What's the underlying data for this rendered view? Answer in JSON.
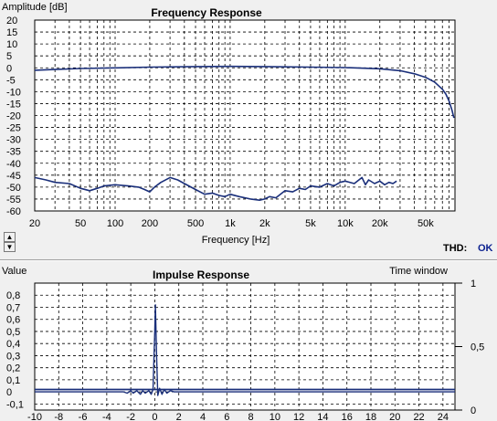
{
  "frequency_panel": {
    "thd_label": "THD:",
    "thd_value": "OK"
  },
  "spin_up_icon": "triangle-up-icon",
  "spin_down_icon": "triangle-down-icon",
  "colors": {
    "plot_bg": "#ffffff",
    "trace": "#1a2f7a",
    "thd_value": "#0a1f8f",
    "window": "#f0f0f0"
  },
  "chart_data": [
    {
      "type": "line",
      "title": "Frequency Response",
      "xlabel": "Frequency [Hz]",
      "ylabel": "Amplitude [dB]",
      "xscale": "log",
      "xlim": [
        20,
        90000
      ],
      "ylim": [
        -60,
        20
      ],
      "grid": true,
      "x_ticks": [
        20,
        50,
        100,
        200,
        500,
        1000,
        2000,
        5000,
        10000,
        20000,
        50000
      ],
      "x_tick_labels": [
        "20",
        "50",
        "100",
        "200",
        "500",
        "1k",
        "2k",
        "5k",
        "10k",
        "20k",
        "50k"
      ],
      "y_ticks": [
        20,
        15,
        10,
        5,
        0,
        -5,
        -10,
        -15,
        -20,
        -25,
        -30,
        -35,
        -40,
        -45,
        -50,
        -55,
        -60
      ],
      "y_tick_labels": [
        "20",
        "15",
        "10",
        "5",
        "0",
        "-5",
        "-10",
        "-15",
        "-20",
        "-25",
        "-30",
        "-35",
        "-40",
        "-45",
        "-50",
        "-55",
        "-60"
      ],
      "series": [
        {
          "x": [
            20,
            30,
            50,
            100,
            200,
            500,
            1000,
            2000,
            5000,
            10000,
            20000,
            30000,
            40000,
            50000,
            60000,
            70000,
            75000,
            80000,
            85000,
            88000
          ],
          "y": [
            -1,
            -0.7,
            -0.3,
            0,
            0.3,
            0.5,
            0.6,
            0.5,
            0.3,
            0.1,
            -0.4,
            -1.2,
            -2.5,
            -4,
            -6,
            -9,
            -11,
            -14,
            -18,
            -21
          ]
        },
        {
          "x": [
            20,
            25,
            30,
            40,
            50,
            60,
            70,
            80,
            100,
            130,
            160,
            180,
            200,
            220,
            250,
            300,
            350,
            400,
            500,
            600,
            700,
            800,
            900,
            1000,
            1200,
            1500,
            1800,
            2000,
            2200,
            2500,
            3000,
            3500,
            4000,
            4500,
            5000,
            6000,
            7000,
            8000,
            9000,
            10000,
            12000,
            14000,
            15000,
            16000,
            18000,
            20000,
            22000,
            24000,
            26000,
            28000
          ],
          "y": [
            -46,
            -47,
            -48,
            -48.5,
            -50.5,
            -51.5,
            -50.5,
            -49.5,
            -49,
            -49.5,
            -50,
            -51,
            -52,
            -50,
            -48,
            -46,
            -47,
            -48.5,
            -51,
            -53,
            -52.5,
            -53.5,
            -54,
            -53,
            -54,
            -55,
            -55.5,
            -55,
            -54,
            -54.5,
            -51.5,
            -52,
            -50.5,
            -51,
            -49.5,
            -50,
            -48.5,
            -49.5,
            -48,
            -47.5,
            -48.5,
            -46,
            -49,
            -47,
            -48.5,
            -47.5,
            -49,
            -48,
            -48.5,
            -47.5
          ]
        }
      ]
    },
    {
      "type": "line",
      "title": "Impulse Response",
      "ylabel": "Value",
      "y2label": "Time window",
      "xlim": [
        -10,
        25
      ],
      "ylim": [
        -0.15,
        0.9
      ],
      "y2lim": [
        0,
        1
      ],
      "grid": true,
      "x_ticks": [
        -10,
        -8,
        -6,
        -4,
        -2,
        0,
        2,
        4,
        6,
        8,
        10,
        12,
        14,
        16,
        18,
        20,
        22,
        24
      ],
      "x_tick_labels": [
        "-10",
        "-8",
        "-6",
        "-4",
        "-2",
        "0",
        "2",
        "4",
        "6",
        "8",
        "10",
        "12",
        "14",
        "16",
        "18",
        "20",
        "22",
        "24"
      ],
      "y_ticks": [
        0.8,
        0.7,
        0.6,
        0.5,
        0.4,
        0.3,
        0.2,
        0.1,
        0,
        -0.1
      ],
      "y_tick_labels": [
        "0,8",
        "0,7",
        "0,6",
        "0,5",
        "0,4",
        "0,3",
        "0,2",
        "0,1",
        "0",
        "-0,1"
      ],
      "y2_ticks": [
        1,
        0.5,
        0
      ],
      "y2_tick_labels": [
        "1",
        "0,5",
        "0"
      ],
      "series": [
        {
          "x": [
            -10,
            -2.6,
            -2.3,
            -2.0,
            -1.8,
            -1.5,
            -1.2,
            -1.0,
            -0.8,
            -0.5,
            -0.3,
            -0.15,
            0,
            0.05,
            0.15,
            0.25,
            0.4,
            0.6,
            0.8,
            1.0,
            1.3,
            1.6,
            2.0,
            25
          ],
          "y": [
            0,
            0,
            -0.01,
            0.01,
            -0.01,
            0.01,
            -0.02,
            0.01,
            -0.01,
            0.01,
            -0.02,
            0.02,
            0.5,
            0.72,
            0.3,
            -0.03,
            0.03,
            -0.02,
            0.02,
            -0.01,
            0.01,
            0,
            0,
            0
          ]
        },
        {
          "x": [
            -10,
            25
          ],
          "y": [
            0.02,
            0.02
          ]
        }
      ]
    }
  ]
}
